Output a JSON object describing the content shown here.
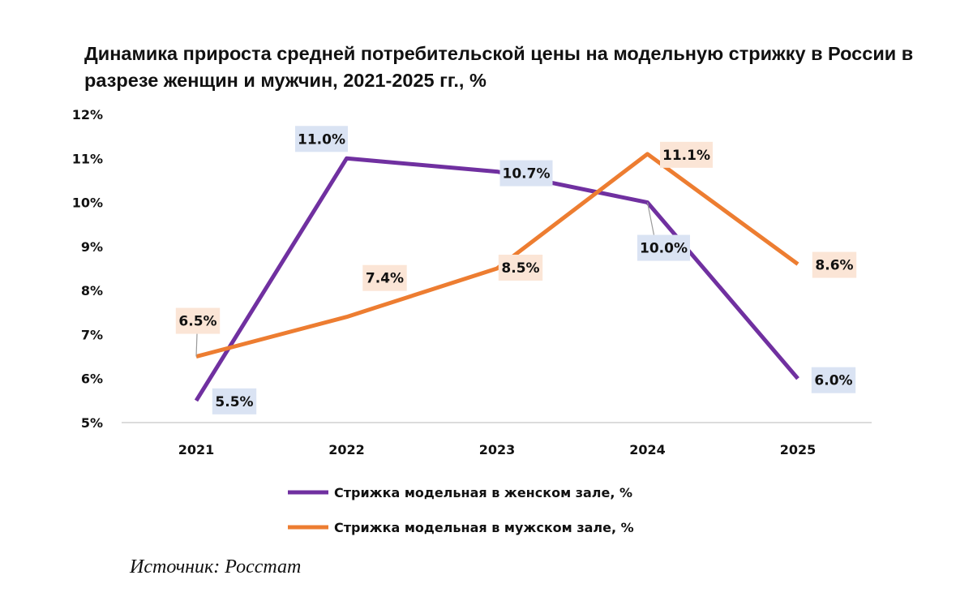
{
  "chart_data": {
    "type": "line",
    "title": "Динамика прироста средней потребительской цены на модельную стрижку в России в разрезе женщин и мужчин, 2021-2025 гг., %",
    "categories": [
      "2021",
      "2022",
      "2023",
      "2024",
      "2025"
    ],
    "series": [
      {
        "name": "Стрижка модельная в женском зале, %",
        "values": [
          5.5,
          11.0,
          10.7,
          10.0,
          6.0
        ],
        "labels": [
          "5.5%",
          "11.0%",
          "10.7%",
          "10.0%",
          "6.0%"
        ],
        "color": "#7030a0",
        "label_bg": "#dae3f3"
      },
      {
        "name": "Стрижка модельная в мужском зале, %",
        "values": [
          6.5,
          7.4,
          8.5,
          11.1,
          8.6
        ],
        "labels": [
          "6.5%",
          "7.4%",
          "8.5%",
          "11.1%",
          "8.6%"
        ],
        "color": "#ed7d31",
        "label_bg": "#fbe5d6"
      }
    ],
    "ylim": [
      5,
      12
    ],
    "yticks": [
      5,
      6,
      7,
      8,
      9,
      10,
      11,
      12
    ],
    "ytick_labels": [
      "5%",
      "6%",
      "7%",
      "8%",
      "9%",
      "10%",
      "11%",
      "12%"
    ],
    "legend_position": "bottom",
    "grid": false
  },
  "source": "Источник: Росстат"
}
